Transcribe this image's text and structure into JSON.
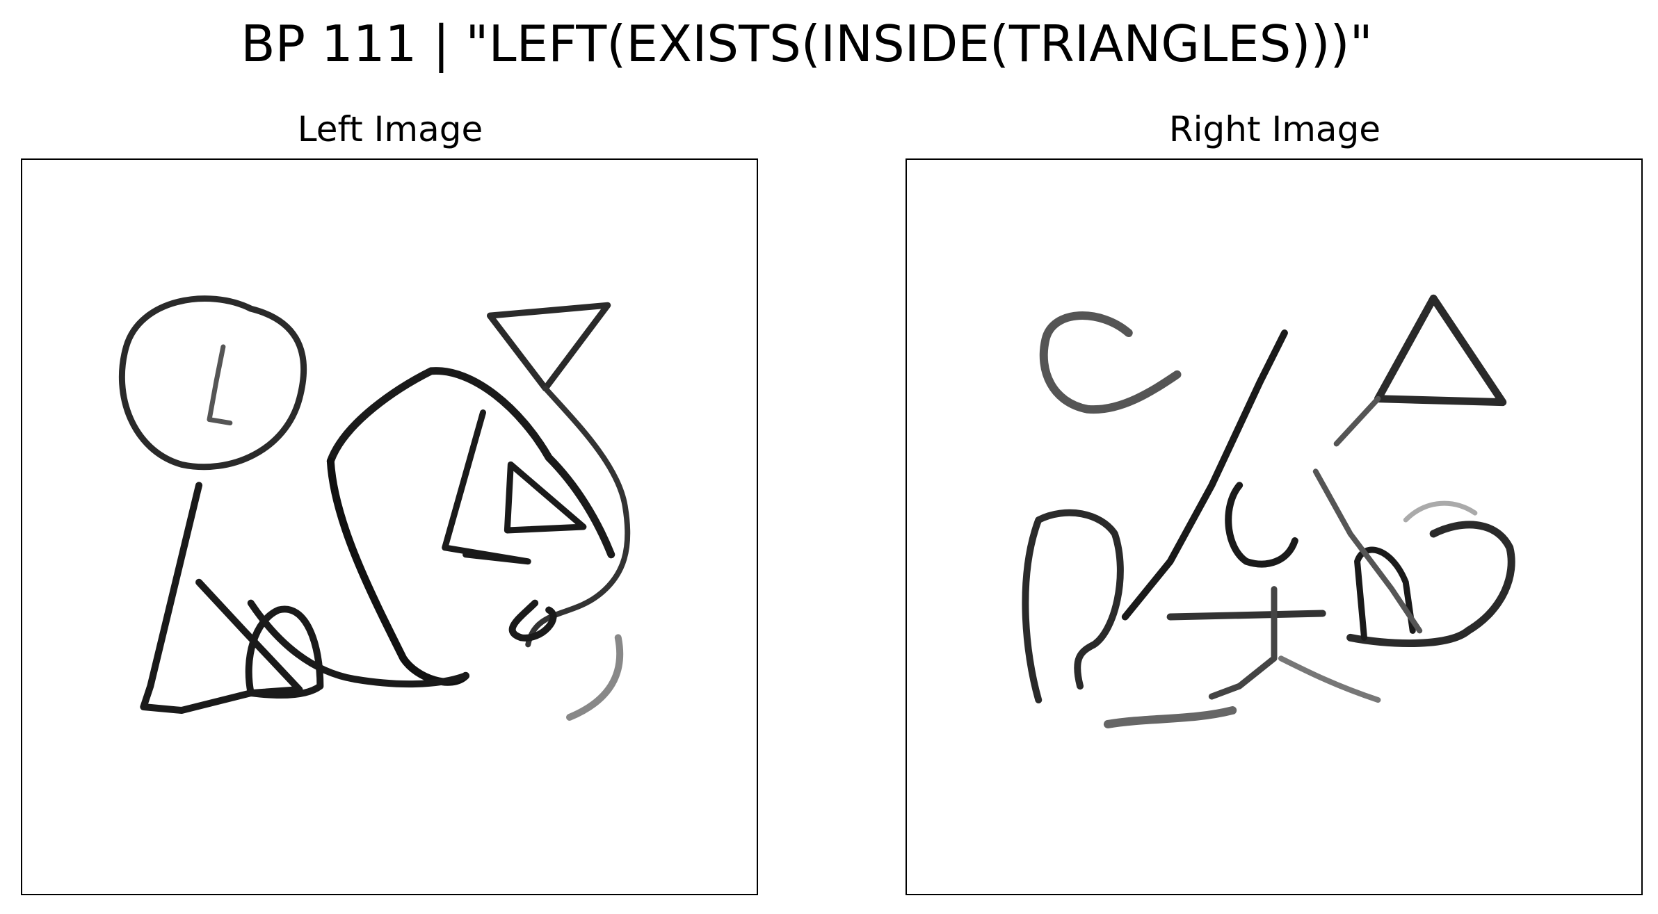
{
  "title": "BP 111 | \"LEFT(EXISTS(INSIDE(TRIANGLES)))\"",
  "panels": {
    "left": {
      "title": "Left Image"
    },
    "right": {
      "title": "Right Image"
    }
  },
  "colors": {
    "ink": "#1a1a1a",
    "ink_light": "#555555",
    "ink_faint": "#8a8a8a",
    "frame": "#000000"
  }
}
